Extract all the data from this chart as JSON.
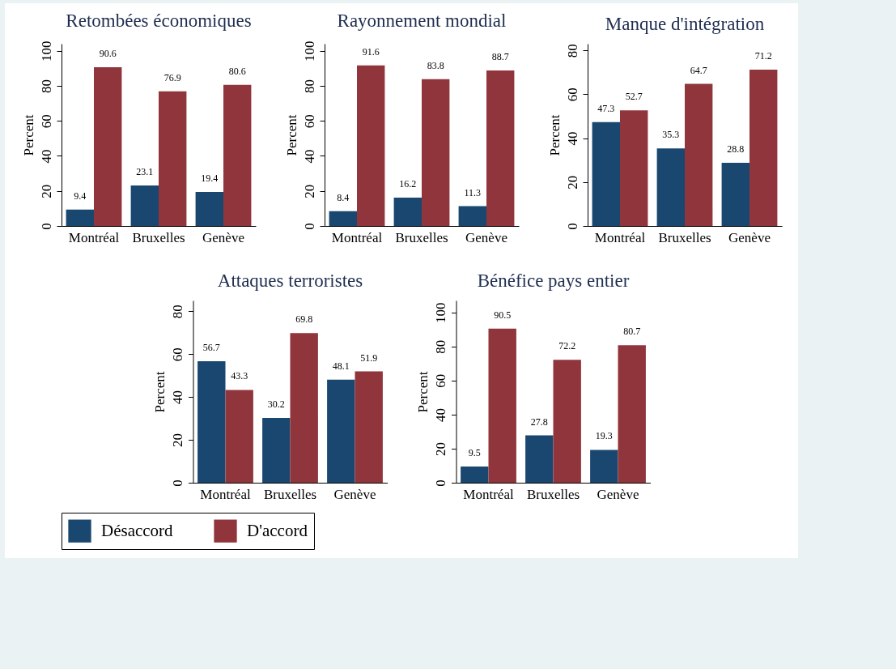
{
  "chart_data": [
    {
      "type": "bar",
      "title": "Retombées économiques",
      "ylabel": "Percent",
      "categories": [
        "Montréal",
        "Bruxelles",
        "Genève"
      ],
      "series": [
        {
          "name": "Désaccord",
          "color": "#1a476f",
          "values": [
            9.4,
            23.1,
            19.4
          ]
        },
        {
          "name": "D'accord",
          "color": "#90353b",
          "values": [
            90.6,
            76.9,
            80.6
          ]
        }
      ],
      "ylim": [
        0,
        104
      ],
      "yticks": [
        0,
        20,
        40,
        60,
        80,
        100
      ],
      "data_labels": true,
      "legend": "bottom"
    },
    {
      "type": "bar",
      "title": "Rayonnement mondial",
      "ylabel": "Percent",
      "categories": [
        "Montréal",
        "Bruxelles",
        "Genève"
      ],
      "series": [
        {
          "name": "Désaccord",
          "color": "#1a476f",
          "values": [
            8.4,
            16.2,
            11.3
          ]
        },
        {
          "name": "D'accord",
          "color": "#90353b",
          "values": [
            91.6,
            83.8,
            88.7
          ]
        }
      ],
      "ylim": [
        0,
        104
      ],
      "yticks": [
        0,
        20,
        40,
        60,
        80,
        100
      ],
      "data_labels": true,
      "legend": "bottom"
    },
    {
      "type": "bar",
      "title": "Manque d'intégration",
      "ylabel": "Percent",
      "categories": [
        "Montréal",
        "Bruxelles",
        "Genève"
      ],
      "series": [
        {
          "name": "Désaccord",
          "color": "#1a476f",
          "values": [
            47.3,
            35.3,
            28.8
          ]
        },
        {
          "name": "D'accord",
          "color": "#90353b",
          "values": [
            52.7,
            64.7,
            71.2
          ]
        }
      ],
      "ylim": [
        0,
        83
      ],
      "yticks": [
        0,
        20,
        40,
        60,
        80
      ],
      "data_labels": true,
      "legend": "bottom"
    },
    {
      "type": "bar",
      "title": "Attaques terroristes",
      "ylabel": "Percent",
      "categories": [
        "Montréal",
        "Bruxelles",
        "Genève"
      ],
      "series": [
        {
          "name": "Désaccord",
          "color": "#1a476f",
          "values": [
            56.7,
            30.2,
            48.1
          ]
        },
        {
          "name": "D'accord",
          "color": "#90353b",
          "values": [
            43.3,
            69.8,
            51.9
          ]
        }
      ],
      "ylim": [
        0,
        85
      ],
      "yticks": [
        0,
        20,
        40,
        60,
        80
      ],
      "data_labels": true,
      "legend": "bottom"
    },
    {
      "type": "bar",
      "title": "Bénéfice pays entier",
      "ylabel": "Percent",
      "categories": [
        "Montréal",
        "Bruxelles",
        "Genève"
      ],
      "series": [
        {
          "name": "Désaccord",
          "color": "#1a476f",
          "values": [
            9.5,
            27.8,
            19.3
          ]
        },
        {
          "name": "D'accord",
          "color": "#90353b",
          "values": [
            90.5,
            72.2,
            80.7
          ]
        }
      ],
      "ylim": [
        0,
        107
      ],
      "yticks": [
        0,
        20,
        40,
        60,
        80,
        100
      ],
      "data_labels": true,
      "legend": "bottom"
    }
  ]
}
